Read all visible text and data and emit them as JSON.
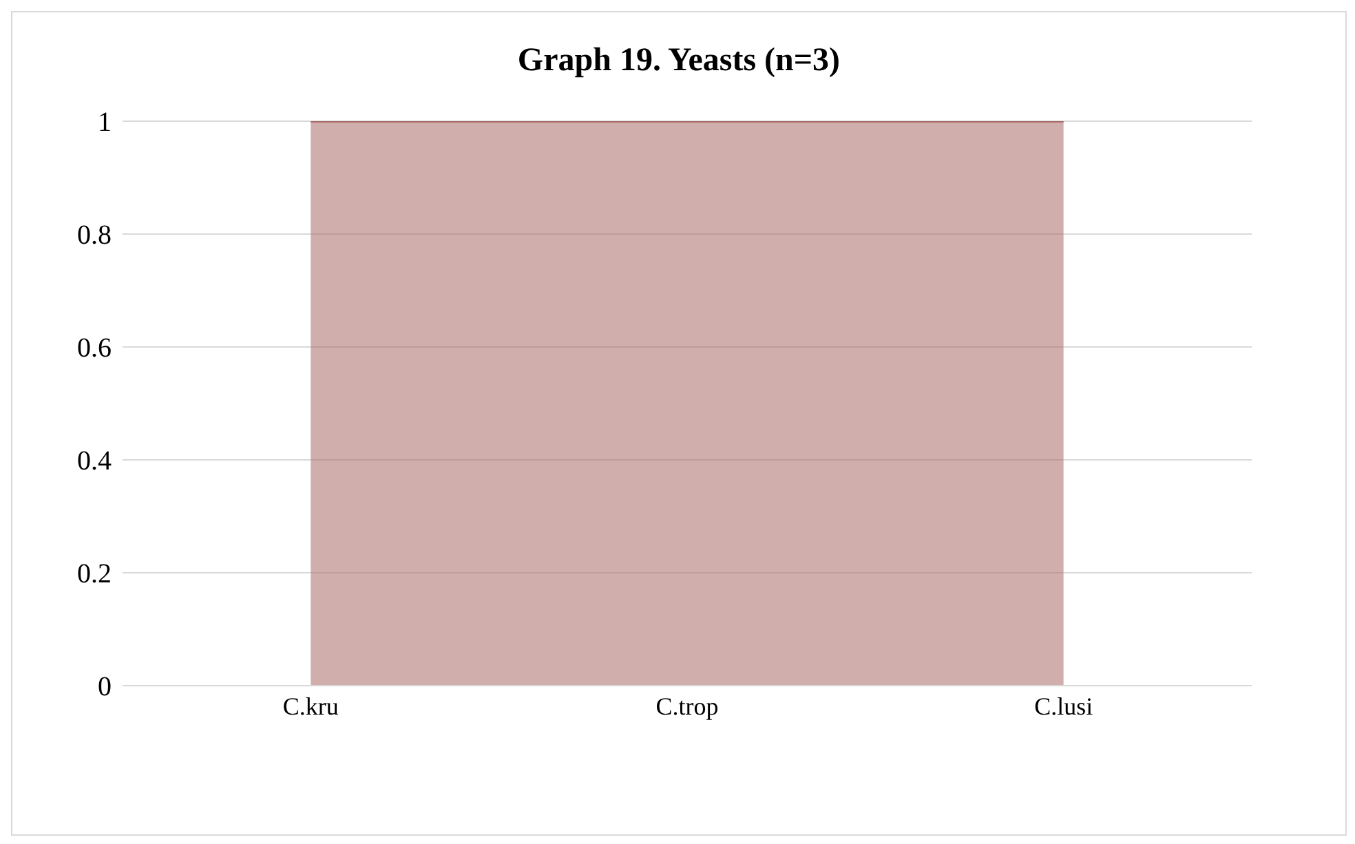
{
  "chart_data": {
    "type": "area",
    "title": "Graph 19. Yeasts (n=3)",
    "categories": [
      "C.kru",
      "C.trop",
      "C.lusi"
    ],
    "values": [
      1,
      1,
      1
    ],
    "color": "#a86b68",
    "ylim": [
      0,
      1
    ],
    "yticks": [
      0,
      0.2,
      0.4,
      0.6,
      0.8,
      1
    ],
    "grid": "y"
  }
}
